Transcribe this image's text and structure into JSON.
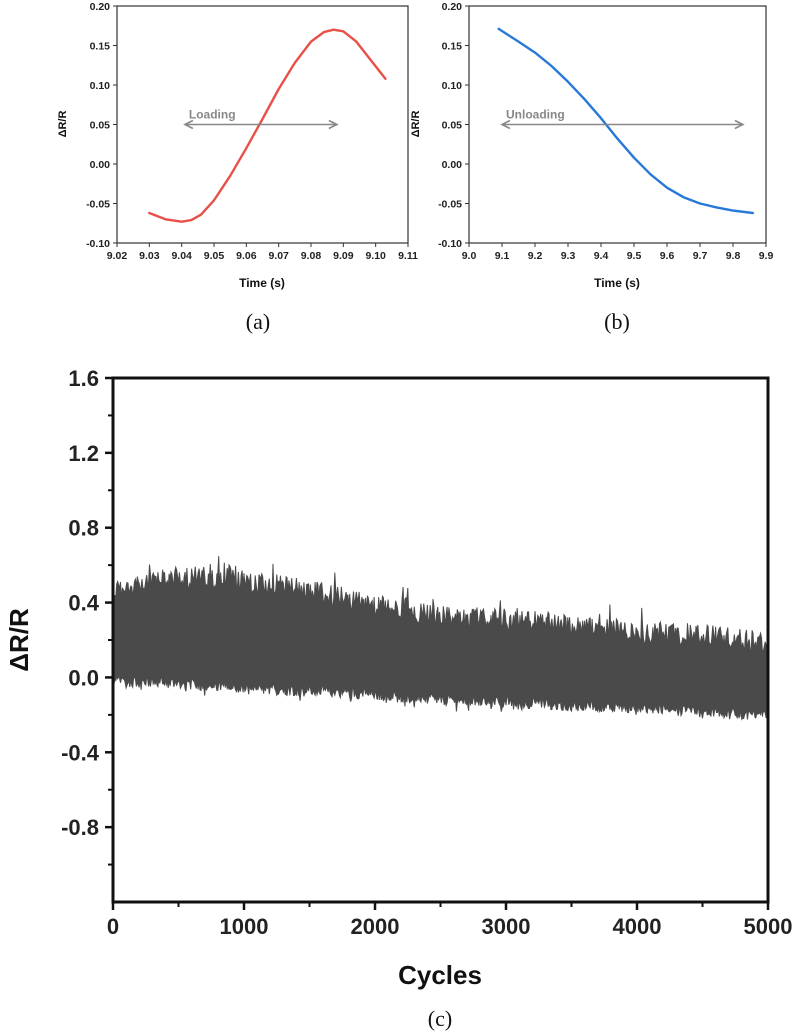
{
  "chart_data": [
    {
      "panel": "a",
      "caption": "(a)",
      "type": "line",
      "xlabel": "Time (s)",
      "ylabel": "ΔR/R",
      "xlim": [
        9.02,
        9.11
      ],
      "ylim": [
        -0.1,
        0.2
      ],
      "xticks": [
        "9.02",
        "9.03",
        "9.04",
        "9.05",
        "9.06",
        "9.07",
        "9.08",
        "9.09",
        "9.10",
        "9.11"
      ],
      "yticks": [
        "-0.10",
        "-0.05",
        "0.00",
        "0.05",
        "0.10",
        "0.15",
        "0.20"
      ],
      "color": "#e8504a",
      "annotation": {
        "text": "Loading",
        "y": 0.05,
        "x_from": 9.041,
        "x_to": 9.088
      },
      "series": [
        {
          "x": [
            9.03,
            9.035,
            9.04,
            9.043,
            9.046,
            9.05,
            9.055,
            9.06,
            9.065,
            9.07,
            9.075,
            9.08,
            9.084,
            9.087,
            9.09,
            9.094,
            9.098,
            9.103
          ],
          "y": [
            -0.062,
            -0.07,
            -0.073,
            -0.071,
            -0.064,
            -0.046,
            -0.015,
            0.02,
            0.057,
            0.095,
            0.128,
            0.155,
            0.167,
            0.17,
            0.168,
            0.155,
            0.134,
            0.108
          ]
        }
      ]
    },
    {
      "panel": "b",
      "caption": "(b)",
      "type": "line",
      "xlabel": "Time (s)",
      "ylabel": "ΔR/R",
      "xlim": [
        9.0,
        9.9
      ],
      "ylim": [
        -0.1,
        0.2
      ],
      "xticks": [
        "9.0",
        "9.1",
        "9.2",
        "9.3",
        "9.4",
        "9.5",
        "9.6",
        "9.7",
        "9.8",
        "9.9"
      ],
      "yticks": [
        "-0.10",
        "-0.05",
        "0.00",
        "0.05",
        "0.10",
        "0.15",
        "0.20"
      ],
      "color": "#2878d8",
      "annotation": {
        "text": "Unloading",
        "y": 0.05,
        "x_from": 9.1,
        "x_to": 9.83
      },
      "series": [
        {
          "x": [
            9.09,
            9.15,
            9.2,
            9.25,
            9.3,
            9.35,
            9.4,
            9.45,
            9.5,
            9.55,
            9.6,
            9.65,
            9.7,
            9.75,
            9.8,
            9.86
          ],
          "y": [
            0.171,
            0.155,
            0.141,
            0.124,
            0.104,
            0.082,
            0.058,
            0.032,
            0.008,
            -0.013,
            -0.03,
            -0.042,
            -0.05,
            -0.055,
            -0.059,
            -0.062
          ]
        }
      ]
    },
    {
      "panel": "c",
      "caption": "(c)",
      "type": "area",
      "xlabel": "Cycles",
      "ylabel": "ΔR/R",
      "xlim": [
        0,
        5000
      ],
      "ylim": [
        -1.2,
        1.6
      ],
      "xticks": [
        "0",
        "1000",
        "2000",
        "3000",
        "4000",
        "5000"
      ],
      "yticks": [
        "-0.8",
        "-0.4",
        "0.0",
        "0.4",
        "0.8",
        "1.2",
        "1.6"
      ],
      "color": "#4a4a4a",
      "envelope": {
        "cycles": [
          0,
          500,
          1000,
          1500,
          2000,
          2500,
          3000,
          3500,
          4000,
          4500,
          5000
        ],
        "upper": [
          0.52,
          0.6,
          0.58,
          0.52,
          0.45,
          0.39,
          0.37,
          0.34,
          0.3,
          0.29,
          0.24
        ],
        "lower": [
          -0.05,
          -0.06,
          -0.09,
          -0.1,
          -0.12,
          -0.15,
          -0.16,
          -0.18,
          -0.19,
          -0.22,
          -0.23
        ]
      }
    }
  ]
}
